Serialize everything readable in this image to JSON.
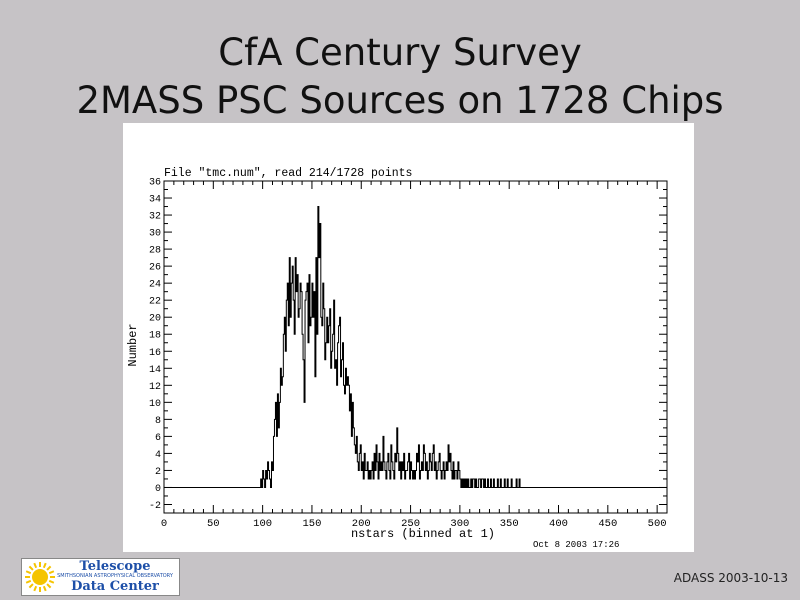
{
  "slide": {
    "title_line1": "CfA Century Survey",
    "title_line2": "2MASS PSC Sources on 1728 Chips",
    "footer": "ADASS 2003-10-13",
    "logo": {
      "line1": "Telescope",
      "line2": "SMITHSONIAN ASTROPHYSICAL OBSERVATORY",
      "line3": "Data Center",
      "sun_color": "#f5c400",
      "text_color": "#1d4fa8"
    },
    "background_color": "#c6c3c6"
  },
  "chart_data": {
    "type": "line",
    "style": "histogram-step",
    "header": "File \"tmc.num\", read 214/1728 points",
    "timestamp": "Oct  8 2003 17:26",
    "xlabel": "nstars (binned at 1)",
    "ylabel": "Number",
    "xlim": [
      0,
      510
    ],
    "ylim": [
      -3,
      36
    ],
    "xticks": [
      0,
      50,
      100,
      150,
      200,
      250,
      300,
      350,
      400,
      450,
      500
    ],
    "yticks": [
      -2,
      0,
      2,
      4,
      6,
      8,
      10,
      12,
      14,
      16,
      18,
      20,
      22,
      24,
      26,
      28,
      30,
      32,
      34,
      36
    ],
    "grid": false,
    "line_color": "#000000",
    "series": [
      {
        "x_start": 0,
        "x_step": 1,
        "values": [
          0,
          0,
          0,
          0,
          0,
          0,
          0,
          0,
          0,
          0,
          0,
          0,
          0,
          0,
          0,
          0,
          0,
          0,
          0,
          0,
          0,
          0,
          0,
          0,
          0,
          0,
          0,
          0,
          0,
          0,
          0,
          0,
          0,
          0,
          0,
          0,
          0,
          0,
          0,
          0,
          0,
          0,
          0,
          0,
          0,
          0,
          0,
          0,
          0,
          0,
          0,
          0,
          0,
          0,
          0,
          0,
          0,
          0,
          0,
          0,
          0,
          0,
          0,
          0,
          0,
          0,
          0,
          0,
          0,
          0,
          0,
          0,
          0,
          0,
          0,
          0,
          0,
          0,
          0,
          0,
          0,
          0,
          0,
          0,
          0,
          0,
          0,
          0,
          0,
          0,
          0,
          0,
          0,
          0,
          0,
          0,
          0,
          0,
          1,
          0,
          2,
          1,
          0,
          2,
          1,
          3,
          2,
          1,
          0,
          3,
          2,
          6,
          8,
          10,
          6,
          11,
          7,
          10,
          14,
          12,
          13,
          18,
          20,
          16,
          22,
          24,
          19,
          27,
          20,
          24,
          26,
          22,
          18,
          27,
          23,
          25,
          20,
          21,
          24,
          23,
          18,
          15,
          10,
          22,
          23,
          24,
          17,
          25,
          19,
          20,
          24,
          20,
          23,
          13,
          27,
          18,
          33,
          27,
          31,
          20,
          19,
          24,
          21,
          15,
          17,
          20,
          17,
          19,
          21,
          14,
          16,
          18,
          22,
          14,
          15,
          12,
          17,
          19,
          20,
          13,
          15,
          17,
          12,
          11,
          14,
          12,
          13,
          12,
          9,
          11,
          6,
          10,
          7,
          5,
          4,
          6,
          3,
          2,
          4,
          5,
          2,
          3,
          1,
          4,
          2,
          2,
          3,
          1,
          2,
          1,
          2,
          3,
          1,
          4,
          2,
          5,
          3,
          1,
          4,
          2,
          3,
          2,
          6,
          3,
          2,
          1,
          3,
          4,
          2,
          1,
          5,
          3,
          2,
          1,
          4,
          3,
          7,
          4,
          2,
          3,
          1,
          3,
          2,
          4,
          1,
          2,
          2,
          3,
          4,
          1,
          3,
          2,
          1,
          2,
          1,
          2,
          4,
          3,
          5,
          1,
          2,
          3,
          2,
          5,
          4,
          2,
          3,
          1,
          2,
          4,
          3,
          2,
          4,
          5,
          2,
          3,
          1,
          2,
          3,
          4,
          2,
          1,
          2,
          3,
          1,
          2,
          3,
          2,
          5,
          3,
          4,
          2,
          1,
          3,
          1,
          2,
          2,
          1,
          3,
          2,
          1,
          0,
          1,
          0,
          1,
          0,
          1,
          0,
          1,
          0,
          0,
          1,
          0,
          1,
          1,
          0,
          1,
          0,
          0,
          1,
          1,
          0,
          1,
          1,
          0,
          1,
          0,
          0,
          1,
          0,
          0,
          1,
          0,
          0,
          1,
          0,
          0,
          0,
          1,
          0,
          0,
          1,
          0,
          0,
          0,
          1,
          0,
          0,
          1,
          0,
          0,
          0,
          1,
          0,
          0,
          0,
          0,
          1,
          0,
          0,
          1,
          0,
          0,
          0,
          0,
          0,
          0,
          0,
          0,
          0,
          0,
          0,
          0,
          0,
          0,
          0,
          0,
          0,
          0,
          0,
          0,
          0,
          0,
          0,
          0,
          0,
          0,
          0,
          0,
          0,
          0,
          0,
          0,
          0,
          0,
          0,
          0,
          0,
          0,
          0,
          0,
          0,
          0,
          0,
          0,
          0,
          0,
          0,
          0,
          0,
          0,
          0,
          0,
          0,
          0,
          0,
          0,
          0,
          0,
          0,
          0,
          0,
          0,
          0,
          0,
          0,
          0,
          0,
          0,
          0,
          0,
          0,
          0,
          0,
          0,
          0,
          0,
          0,
          0,
          0,
          0,
          0,
          0,
          0,
          0,
          0,
          0,
          0,
          0,
          0,
          0,
          0,
          0,
          0,
          0,
          0,
          0,
          0,
          0,
          0,
          0,
          0,
          0,
          0,
          0,
          0,
          0,
          0,
          0,
          0,
          0,
          0,
          0,
          0,
          0,
          0,
          0,
          0,
          0,
          0
        ]
      }
    ]
  }
}
